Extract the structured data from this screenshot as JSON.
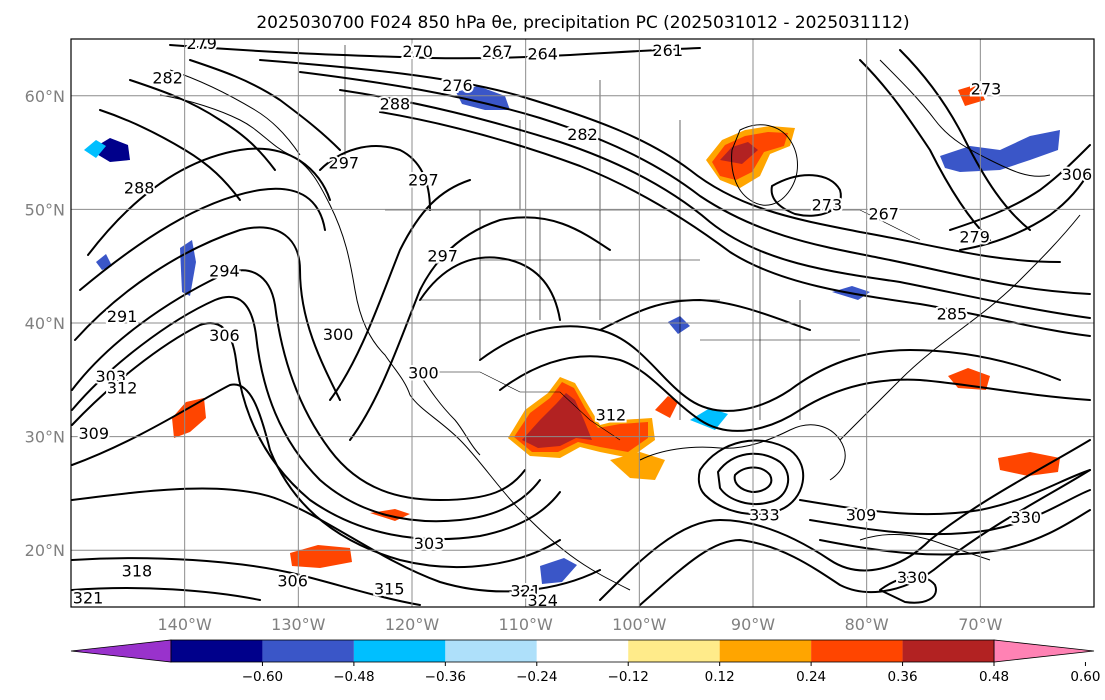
{
  "title": "2025030700 F024 850 hPa θe, precipitation PC (2025031012 - 2025031112)",
  "map": {
    "lon_range": [
      -150,
      -60
    ],
    "lat_range": [
      15,
      65
    ],
    "lon_ticks": [
      {
        "lon": -140,
        "label": "140°W"
      },
      {
        "lon": -130,
        "label": "130°W"
      },
      {
        "lon": -120,
        "label": "120°W"
      },
      {
        "lon": -110,
        "label": "110°W"
      },
      {
        "lon": -100,
        "label": "100°W"
      },
      {
        "lon": -90,
        "label": "90°W"
      },
      {
        "lon": -80,
        "label": "80°W"
      },
      {
        "lon": -70,
        "label": "70°W"
      }
    ],
    "lat_ticks": [
      {
        "lat": 20,
        "label": "20°N"
      },
      {
        "lat": 30,
        "label": "30°N"
      },
      {
        "lat": 40,
        "label": "40°N"
      },
      {
        "lat": 50,
        "label": "50°N"
      },
      {
        "lat": 60,
        "label": "60°N"
      }
    ],
    "gridlines": true
  },
  "contour_labels": [
    {
      "text": "279",
      "lon": -138.5,
      "lat": 64.5
    },
    {
      "text": "270",
      "lon": -119.5,
      "lat": 63.8
    },
    {
      "text": "267",
      "lon": -112.5,
      "lat": 63.8
    },
    {
      "text": "264",
      "lon": -108.5,
      "lat": 63.6
    },
    {
      "text": "261",
      "lon": -97.5,
      "lat": 63.9
    },
    {
      "text": "282",
      "lon": -141.5,
      "lat": 61.5
    },
    {
      "text": "276",
      "lon": -116,
      "lat": 60.8
    },
    {
      "text": "288",
      "lon": -121.5,
      "lat": 59.2
    },
    {
      "text": "282",
      "lon": -105,
      "lat": 56.5
    },
    {
      "text": "297",
      "lon": -126,
      "lat": 54
    },
    {
      "text": "297",
      "lon": -119,
      "lat": 52.5
    },
    {
      "text": "288",
      "lon": -144,
      "lat": 51.8
    },
    {
      "text": "273",
      "lon": -83.5,
      "lat": 50.3
    },
    {
      "text": "267",
      "lon": -78.5,
      "lat": 49.5
    },
    {
      "text": "273",
      "lon": -69.5,
      "lat": 60.5
    },
    {
      "text": "279",
      "lon": -70.5,
      "lat": 47.5
    },
    {
      "text": "306",
      "lon": -61.5,
      "lat": 53
    },
    {
      "text": "297",
      "lon": -117.3,
      "lat": 45.8
    },
    {
      "text": "294",
      "lon": -136.5,
      "lat": 44.5
    },
    {
      "text": "291",
      "lon": -145.5,
      "lat": 40.5
    },
    {
      "text": "306",
      "lon": -136.5,
      "lat": 38.8
    },
    {
      "text": "300",
      "lon": -126.5,
      "lat": 38.9
    },
    {
      "text": "285",
      "lon": -72.5,
      "lat": 40.7
    },
    {
      "text": "303",
      "lon": -146.5,
      "lat": 35.2
    },
    {
      "text": "312",
      "lon": -145.5,
      "lat": 34.2
    },
    {
      "text": "300",
      "lon": -119,
      "lat": 35.5
    },
    {
      "text": "309",
      "lon": -148,
      "lat": 30.2
    },
    {
      "text": "312",
      "lon": -102.5,
      "lat": 31.8
    },
    {
      "text": "333",
      "lon": -89,
      "lat": 23
    },
    {
      "text": "309",
      "lon": -80.5,
      "lat": 23
    },
    {
      "text": "330",
      "lon": -66,
      "lat": 22.8
    },
    {
      "text": "303",
      "lon": -118.5,
      "lat": 20.5
    },
    {
      "text": "318",
      "lon": -144.2,
      "lat": 18.1
    },
    {
      "text": "306",
      "lon": -130.5,
      "lat": 17.2
    },
    {
      "text": "315",
      "lon": -122,
      "lat": 16.5
    },
    {
      "text": "321",
      "lon": -110,
      "lat": 16.3
    },
    {
      "text": "324",
      "lon": -108.5,
      "lat": 15.5
    },
    {
      "text": "321",
      "lon": -148.5,
      "lat": 15.7
    },
    {
      "text": "330",
      "lon": -76,
      "lat": 17.5
    }
  ],
  "colorbar": {
    "colors": [
      "#9932cc",
      "#00008b",
      "#3a56c8",
      "#00bfff",
      "#aee0fa",
      "#ffffff",
      "#ffeb8a",
      "#ffa500",
      "#ff4500",
      "#b22222",
      "#ff82b4"
    ],
    "extend": "both",
    "tick_labels": [
      "−0.60",
      "−0.48",
      "−0.36",
      "−0.24",
      "−0.12",
      "0.12",
      "0.24",
      "0.36",
      "0.48",
      "0.60"
    ]
  },
  "precip_fill_colors": {
    "neg_strong": "#00008b",
    "neg_mid": "#3a56c8",
    "neg_light": "#00bfff",
    "neg_faint": "#aee0fa",
    "pos_faint": "#ffeb8a",
    "pos_light": "#ffa500",
    "pos_mid": "#ff4500",
    "pos_strong": "#b22222"
  }
}
